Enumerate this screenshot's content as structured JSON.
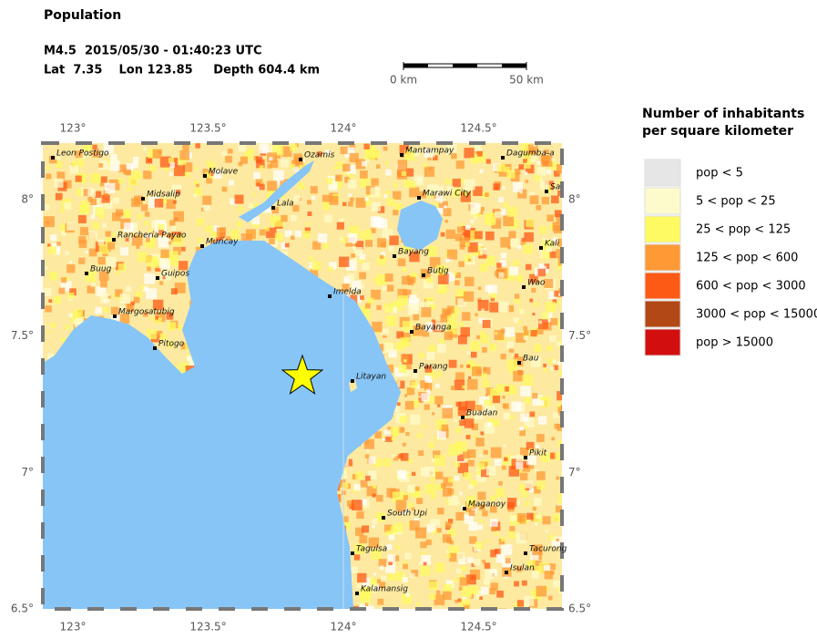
{
  "header": {
    "title": "Population",
    "event_line": "M4.5  2015/05/30 - 01:40:23 UTC",
    "location_line": "Lat  7.35    Lon 123.85     Depth 604.4 km"
  },
  "scale_bar": {
    "start_label": "0 km",
    "end_label": "50 km"
  },
  "map": {
    "lon_ticks": [
      {
        "value": 123,
        "label": "123°"
      },
      {
        "value": 123.5,
        "label": "123.5°"
      },
      {
        "value": 124,
        "label": "124°"
      },
      {
        "value": 124.5,
        "label": "124.5°"
      }
    ],
    "lat_ticks": [
      {
        "value": 8,
        "label": "8°"
      },
      {
        "value": 7.5,
        "label": "7.5°"
      },
      {
        "value": 7,
        "label": "7°"
      },
      {
        "value": 6.5,
        "label": "6.5°"
      }
    ],
    "cities": [
      "Leon Postigo",
      "Ozamis",
      "Mantampay",
      "Dagumba-a",
      "Molave",
      "Midsalip",
      "Lala",
      "Marawi City",
      "Sa",
      "Rancheria Payao",
      "Muricay",
      "Bayang",
      "Kali",
      "Buug",
      "Guipos",
      "Butig",
      "Wao",
      "Imelda",
      "Margosatubig",
      "Bayanga",
      "Pitogo",
      "Bau",
      "Parang",
      "Litayan",
      "Buadan",
      "Pikit",
      "South Upi",
      "Maganoy",
      "Tagulsa",
      "Tacurong",
      "Isulan",
      "Kalamansig"
    ]
  },
  "legend": {
    "title_lines": [
      "Number of inhabitants",
      "per square kilometer"
    ],
    "entries": [
      {
        "label": "pop < 5",
        "color": "#e6e6e6"
      },
      {
        "label": "5 < pop < 25",
        "color": "#fdfbcb"
      },
      {
        "label": "25 < pop < 125",
        "color": "#fefa62"
      },
      {
        "label": "125 < pop < 600",
        "color": "#fd9a36"
      },
      {
        "label": "600 < pop < 3000",
        "color": "#fd5a16"
      },
      {
        "label": "3000 < pop < 15000",
        "color": "#b24815"
      },
      {
        "label": "pop > 15000",
        "color": "#d30e0e"
      }
    ]
  }
}
